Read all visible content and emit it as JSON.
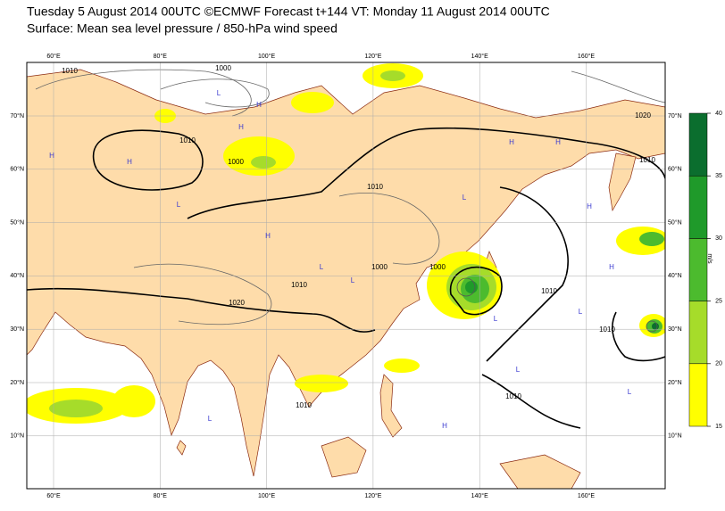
{
  "title": "Tuesday 5 August 2014 00UTC ©ECMWF Forecast t+144 VT: Monday 11 August 2014 00UTC",
  "subtitle": "Surface: Mean sea level pressure / 850-hPa wind speed",
  "map": {
    "longitude_labels": [
      "60°E",
      "80°E",
      "100°E",
      "120°E",
      "140°E",
      "160°E"
    ],
    "latitude_labels": [
      "70°N",
      "60°N",
      "50°N",
      "40°N",
      "30°N",
      "20°N",
      "10°N"
    ],
    "contour_labels": [
      "1010",
      "1000",
      "1010",
      "1000",
      "1010",
      "1010",
      "1020",
      "1000",
      "1000",
      "1010",
      "1010",
      "1010",
      "1010",
      "1020",
      "1010"
    ],
    "pressure_centers": [
      "H",
      "H",
      "L",
      "H",
      "L",
      "H",
      "L",
      "H",
      "L",
      "H",
      "L",
      "L",
      "H",
      "L",
      "H",
      "L",
      "H",
      "L",
      "L",
      "H"
    ]
  },
  "colorbar": {
    "unit": "m/s",
    "ticks": [
      15,
      20,
      25,
      30,
      35,
      40
    ],
    "colors": [
      "#ffff00",
      "#a6dc2a",
      "#4cbb2e",
      "#1f9a2a",
      "#0b6e2e"
    ]
  }
}
